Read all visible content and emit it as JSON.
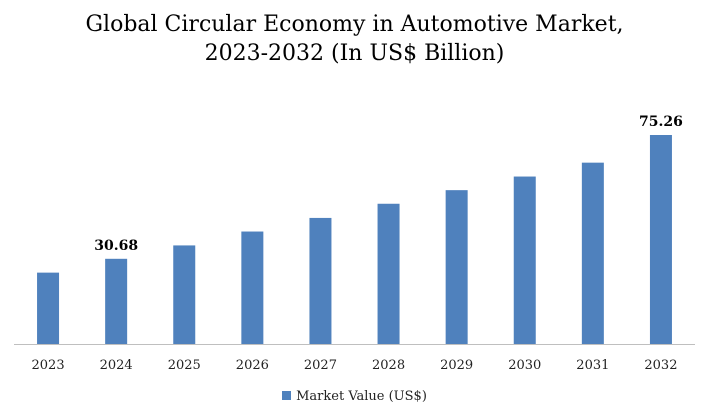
{
  "chart_data": {
    "type": "bar",
    "title_lines": [
      "Global Circular Economy in Automotive Market,",
      "2023-2032 (In US$ Billion)"
    ],
    "categories": [
      "2023",
      "2024",
      "2025",
      "2026",
      "2027",
      "2028",
      "2029",
      "2030",
      "2031",
      "2032"
    ],
    "series": [
      {
        "name": "Market Value (US$)",
        "color": "#4f81bd",
        "values": [
          25.7,
          30.68,
          35.5,
          40.5,
          45.4,
          50.5,
          55.4,
          60.3,
          65.3,
          75.26
        ]
      }
    ],
    "data_labels": [
      {
        "index": 1,
        "text": "30.68"
      },
      {
        "index": 9,
        "text": "75.26"
      }
    ],
    "ylim": [
      0,
      77
    ],
    "grid": false,
    "legend_position": "bottom"
  }
}
